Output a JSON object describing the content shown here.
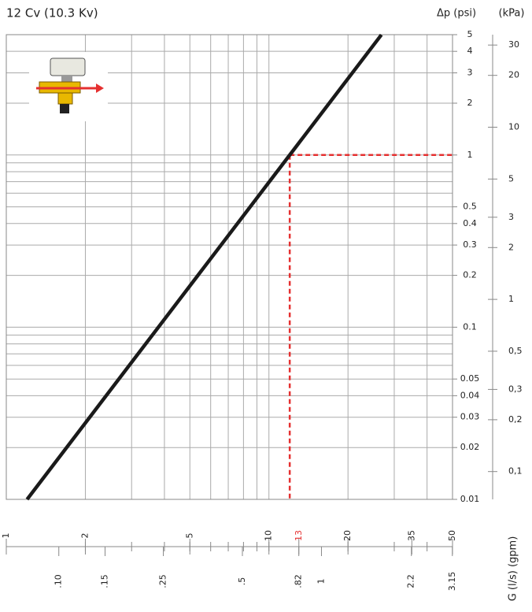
{
  "chart_data": {
    "type": "line",
    "title": "12 Cv (10.3 Kv)",
    "y_label": "Δp (psi)",
    "y2_label": "(kPa)",
    "x_label": "G (l/s)  (gpm)",
    "log_scale": true,
    "grid": true,
    "x": [
      1.2,
      26.8
    ],
    "series": [
      {
        "color": "#1a1a1a",
        "values": [
          0.01,
          4.99
        ]
      }
    ],
    "reference": {
      "x": 12,
      "y": 1,
      "color": "#e53030"
    },
    "highlight_xtick": 13,
    "xlim": [
      1,
      50
    ],
    "xticks": [
      1,
      2,
      5,
      10,
      13,
      20,
      35,
      50
    ],
    "xgrid": [
      1,
      2,
      3,
      4,
      5,
      6,
      7,
      8,
      9,
      10,
      20,
      30,
      40,
      50
    ],
    "x2lim": [
      0.0631,
      3.155
    ],
    "x2ticks": [
      {
        "value": 0.1,
        "label": ".10"
      },
      {
        "value": 0.15,
        "label": ".15"
      },
      {
        "value": 0.25,
        "label": ".25"
      },
      {
        "value": 0.5,
        "label": ".5"
      },
      {
        "value": 0.82,
        "label": ".82"
      },
      1,
      2.2,
      3.15
    ],
    "ylim": [
      0.01,
      5
    ],
    "yticks": [
      5,
      4,
      3,
      2,
      1,
      0.5,
      0.4,
      0.3,
      0.2,
      0.1,
      0.05,
      0.04,
      0.03,
      0.02,
      0.01
    ],
    "ygrid": [
      0.01,
      0.02,
      0.03,
      0.04,
      0.05,
      0.06,
      0.07,
      0.08,
      0.09,
      0.1,
      0.2,
      0.3,
      0.4,
      0.5,
      0.6,
      0.7,
      0.8,
      0.9,
      1,
      2,
      3,
      4,
      5
    ],
    "y2lim": [
      0.06895,
      34.47
    ],
    "y2ticks": [
      30,
      20,
      10,
      5,
      3,
      2,
      1,
      {
        "value": 0.5,
        "label": "0,5"
      },
      {
        "value": 0.3,
        "label": "0,3"
      },
      {
        "value": 0.2,
        "label": "0,2"
      },
      {
        "value": 0.1,
        "label": "0,1"
      }
    ]
  }
}
